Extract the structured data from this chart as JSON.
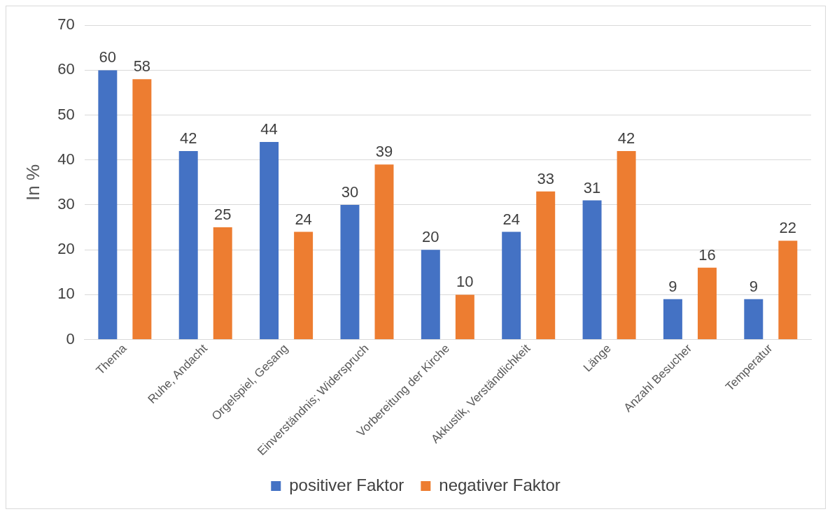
{
  "chart_data": {
    "type": "bar",
    "ylabel": "In %",
    "categories": [
      "Thema",
      "Ruhe, Andacht",
      "Orgelspiel, Gesang",
      "Einverständnis; Widerspruch",
      "Vorbereitung der Kirche",
      "Akkustik, Verständlichkeit",
      "Länge",
      "Anzahl Besucher",
      "Temperatur"
    ],
    "series": [
      {
        "name": "positiver Faktor",
        "color": "#4472c4",
        "values": [
          60,
          42,
          44,
          30,
          20,
          24,
          31,
          9,
          9
        ]
      },
      {
        "name": "negativer Faktor",
        "color": "#ed7d31",
        "values": [
          58,
          25,
          24,
          39,
          10,
          33,
          42,
          16,
          22
        ]
      }
    ],
    "ylim": [
      0,
      70
    ],
    "yticks": [
      0,
      10,
      20,
      30,
      40,
      50,
      60,
      70
    ],
    "grid": "y",
    "legend": "bottom",
    "data_labels": true
  }
}
